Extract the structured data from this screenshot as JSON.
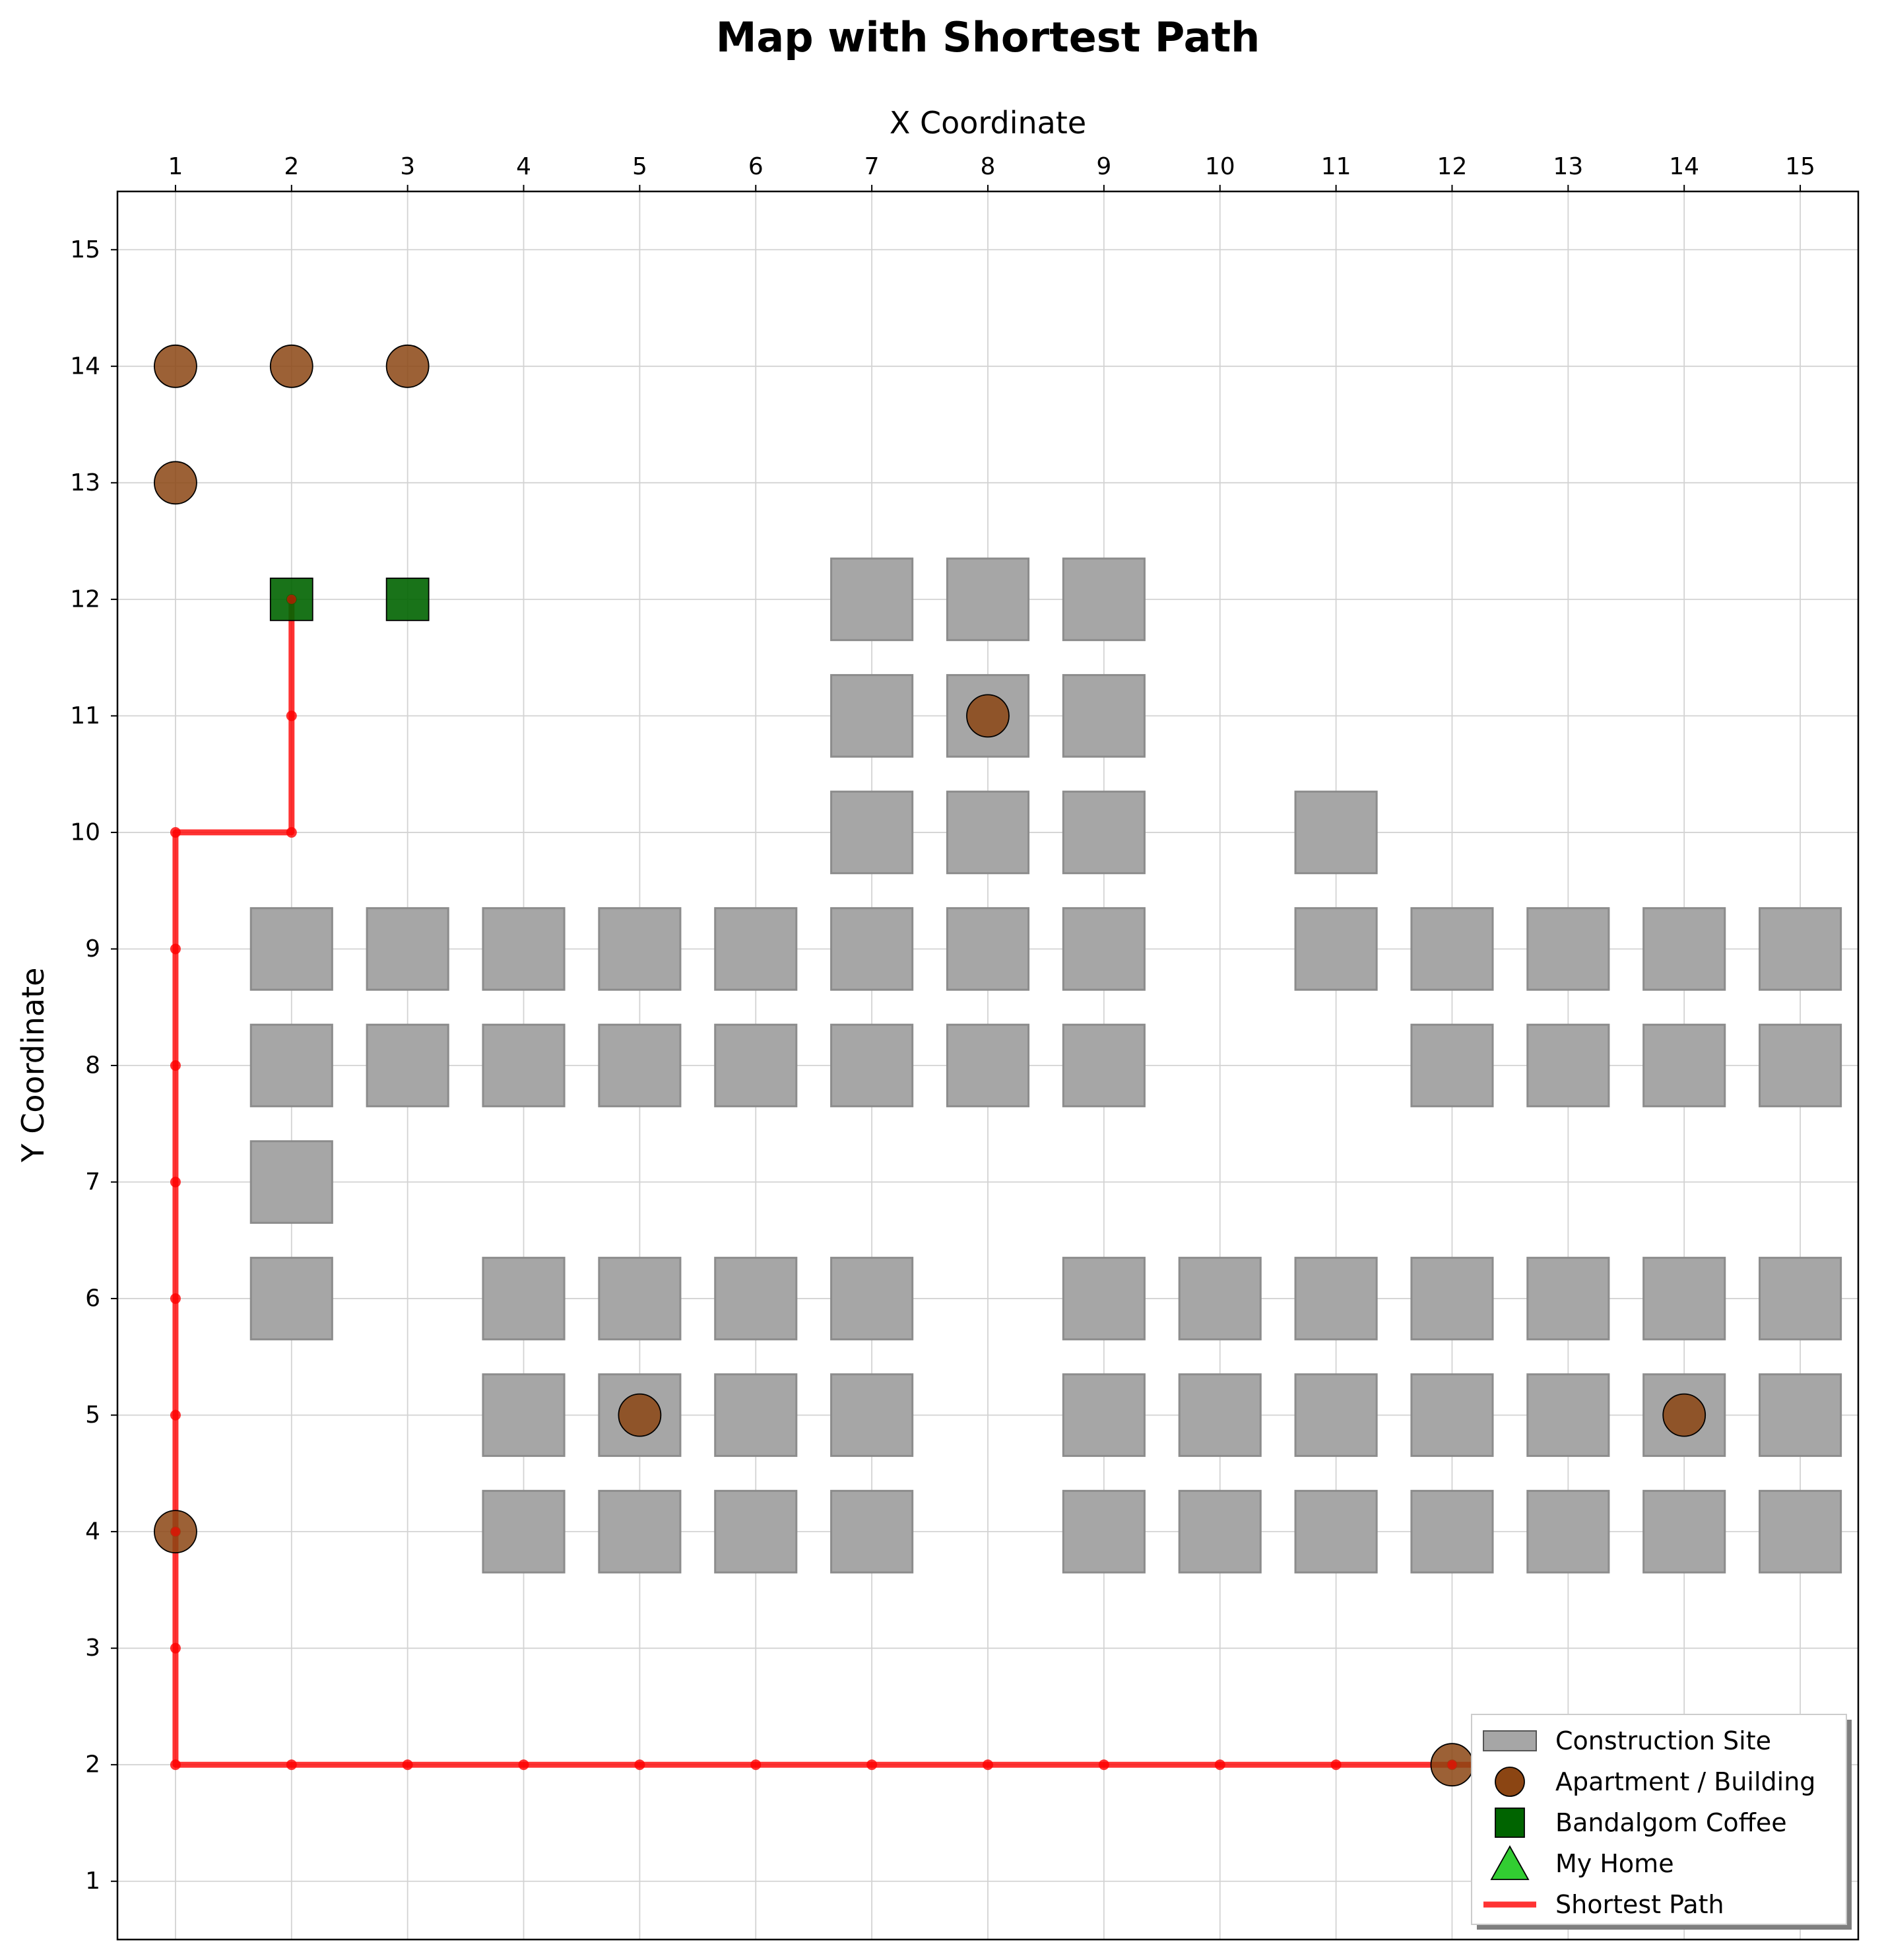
{
  "chart_data": {
    "type": "scatter",
    "title": "Map with Shortest Path",
    "xlabel": "X Coordinate",
    "ylabel": "Y Coordinate",
    "xlim": [
      0.5,
      15.5
    ],
    "ylim": [
      15.5,
      0.5
    ],
    "y_inverted": true,
    "x_axis_position": "top",
    "xticks": [
      1,
      2,
      3,
      4,
      5,
      6,
      7,
      8,
      9,
      10,
      11,
      12,
      13,
      14,
      15
    ],
    "yticks": [
      1,
      2,
      3,
      4,
      5,
      6,
      7,
      8,
      9,
      10,
      11,
      12,
      13,
      14,
      15
    ],
    "grid": true,
    "legend_position": "lower right",
    "colors": {
      "construction": "#a6a6a6",
      "apartment": "#8b4513",
      "coffee": "#006400",
      "home": "#32cd32",
      "path": "#ff0000"
    },
    "series": [
      {
        "name": "Construction Site",
        "marker": "square",
        "points": [
          [
            4,
            4
          ],
          [
            5,
            4
          ],
          [
            6,
            4
          ],
          [
            7,
            4
          ],
          [
            9,
            4
          ],
          [
            10,
            4
          ],
          [
            11,
            4
          ],
          [
            12,
            4
          ],
          [
            13,
            4
          ],
          [
            14,
            4
          ],
          [
            15,
            4
          ],
          [
            4,
            5
          ],
          [
            5,
            5
          ],
          [
            6,
            5
          ],
          [
            7,
            5
          ],
          [
            9,
            5
          ],
          [
            10,
            5
          ],
          [
            11,
            5
          ],
          [
            12,
            5
          ],
          [
            13,
            5
          ],
          [
            14,
            5
          ],
          [
            15,
            5
          ],
          [
            2,
            6
          ],
          [
            4,
            6
          ],
          [
            5,
            6
          ],
          [
            6,
            6
          ],
          [
            7,
            6
          ],
          [
            9,
            6
          ],
          [
            10,
            6
          ],
          [
            11,
            6
          ],
          [
            12,
            6
          ],
          [
            13,
            6
          ],
          [
            14,
            6
          ],
          [
            15,
            6
          ],
          [
            2,
            7
          ],
          [
            2,
            8
          ],
          [
            3,
            8
          ],
          [
            4,
            8
          ],
          [
            5,
            8
          ],
          [
            6,
            8
          ],
          [
            7,
            8
          ],
          [
            8,
            8
          ],
          [
            9,
            8
          ],
          [
            12,
            8
          ],
          [
            13,
            8
          ],
          [
            14,
            8
          ],
          [
            15,
            8
          ],
          [
            2,
            9
          ],
          [
            3,
            9
          ],
          [
            4,
            9
          ],
          [
            5,
            9
          ],
          [
            6,
            9
          ],
          [
            7,
            9
          ],
          [
            8,
            9
          ],
          [
            9,
            9
          ],
          [
            11,
            9
          ],
          [
            12,
            9
          ],
          [
            13,
            9
          ],
          [
            14,
            9
          ],
          [
            15,
            9
          ],
          [
            7,
            10
          ],
          [
            8,
            10
          ],
          [
            9,
            10
          ],
          [
            11,
            10
          ],
          [
            7,
            11
          ],
          [
            8,
            11
          ],
          [
            9,
            11
          ],
          [
            7,
            12
          ],
          [
            8,
            12
          ],
          [
            9,
            12
          ]
        ]
      },
      {
        "name": "Apartment / Building",
        "marker": "circle",
        "points": [
          [
            12,
            2
          ],
          [
            1,
            4
          ],
          [
            5,
            5
          ],
          [
            14,
            5
          ],
          [
            8,
            11
          ],
          [
            1,
            13
          ],
          [
            1,
            14
          ],
          [
            2,
            14
          ],
          [
            3,
            14
          ]
        ]
      },
      {
        "name": "Bandalgom Coffee",
        "marker": "square",
        "points": [
          [
            2,
            12
          ],
          [
            3,
            12
          ]
        ]
      },
      {
        "name": "My Home",
        "marker": "triangle",
        "points": [
          [
            14,
            2
          ]
        ]
      },
      {
        "name": "Shortest Path",
        "marker": "line",
        "points": [
          [
            2,
            12
          ],
          [
            2,
            11
          ],
          [
            2,
            10
          ],
          [
            1,
            10
          ],
          [
            1,
            9
          ],
          [
            1,
            8
          ],
          [
            1,
            7
          ],
          [
            1,
            6
          ],
          [
            1,
            5
          ],
          [
            1,
            4
          ],
          [
            1,
            3
          ],
          [
            1,
            2
          ],
          [
            2,
            2
          ],
          [
            3,
            2
          ],
          [
            4,
            2
          ],
          [
            5,
            2
          ],
          [
            6,
            2
          ],
          [
            7,
            2
          ],
          [
            8,
            2
          ],
          [
            9,
            2
          ],
          [
            10,
            2
          ],
          [
            11,
            2
          ],
          [
            12,
            2
          ],
          [
            13,
            2
          ],
          [
            14,
            2
          ]
        ]
      }
    ]
  }
}
